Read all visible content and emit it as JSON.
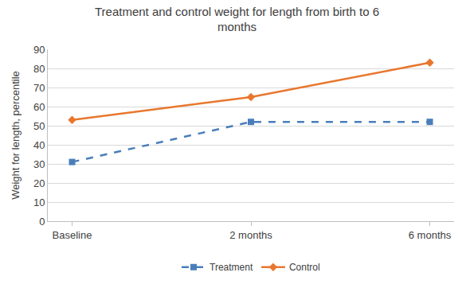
{
  "chart_data": {
    "type": "line",
    "title": "Treatment and control weight for length from birth to 6 months",
    "y_label": "Weight for length, percentile",
    "categories": [
      "Baseline",
      "2 months",
      "6 months"
    ],
    "series": [
      {
        "name": "Treatment",
        "color": "#4a7ebb",
        "marker": "square",
        "line_style": "dash",
        "values": [
          31,
          52,
          52
        ]
      },
      {
        "name": "Control",
        "color": "#e8772e",
        "marker": "diamond",
        "line_style": "solid",
        "values": [
          53,
          65,
          83
        ]
      }
    ],
    "ylim": [
      0,
      90
    ],
    "yticks": [
      0,
      10,
      20,
      30,
      40,
      50,
      60,
      70,
      80,
      90
    ],
    "grid": true,
    "legend": "bottom"
  }
}
